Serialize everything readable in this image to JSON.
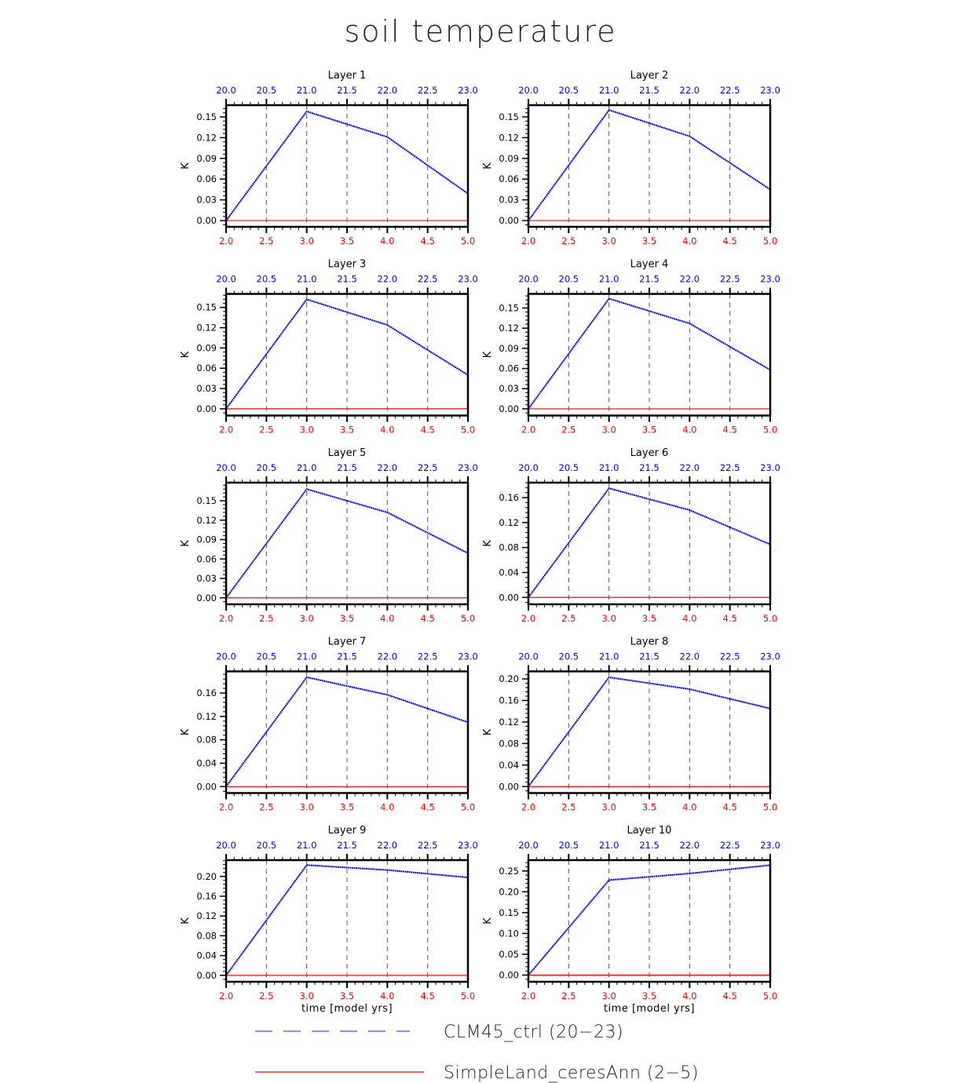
{
  "title": "soil temperature",
  "colors": {
    "clm": "#0000ff",
    "simpleland": "#ff0000",
    "frame": "#000000",
    "grid": "#555555",
    "top_ticks": "#0000ff",
    "bottom_ticks": "#ff0000"
  },
  "legend": {
    "items": [
      {
        "label": "CLM45_ctrl (20−23)",
        "style": "dashed",
        "color": "#6666ff"
      },
      {
        "label": "SimpleLand_ceresAnn (2−5)",
        "style": "solid",
        "color": "#ff3333"
      }
    ]
  },
  "chart_data": {
    "type": "line",
    "title": "soil temperature",
    "layout": {
      "rows": 5,
      "cols": 2,
      "legend_position": "bottom",
      "grid": "vertical dashed"
    },
    "x_bottom": {
      "label": "time [model yrs]",
      "ticks": [
        "2.0",
        "2.5",
        "3.0",
        "3.5",
        "4.0",
        "4.5",
        "5.0"
      ],
      "range": [
        2.0,
        5.0
      ],
      "color": "#ff0000"
    },
    "x_top": {
      "ticks": [
        "20.0",
        "20.5",
        "21.0",
        "21.5",
        "22.0",
        "22.5",
        "23.0"
      ],
      "range": [
        20.0,
        23.0
      ],
      "color": "#0000ff"
    },
    "ylabel": "K",
    "series_names": [
      "CLM45_ctrl (20−23)",
      "SimpleLand_ceresAnn (2−5)"
    ],
    "panels": [
      {
        "title": "Layer 1",
        "yticks": [
          "0.00",
          "0.03",
          "0.06",
          "0.09",
          "0.12",
          "0.15"
        ],
        "ytick_values": [
          0,
          0.03,
          0.06,
          0.09,
          0.12,
          0.15
        ],
        "ylim": [
          -0.009,
          0.167
        ],
        "x": [
          2,
          3,
          4,
          5
        ],
        "clm": [
          0.0,
          0.158,
          0.121,
          0.039
        ],
        "simpleland": [
          0,
          0,
          0,
          0
        ],
        "xlabel": ""
      },
      {
        "title": "Layer 2",
        "yticks": [
          "0.00",
          "0.03",
          "0.06",
          "0.09",
          "0.12",
          "0.15"
        ],
        "ytick_values": [
          0,
          0.03,
          0.06,
          0.09,
          0.12,
          0.15
        ],
        "ylim": [
          -0.009,
          0.167
        ],
        "x": [
          2,
          3,
          4,
          5
        ],
        "clm": [
          0.0,
          0.16,
          0.122,
          0.045
        ],
        "simpleland": [
          0,
          0,
          0,
          0
        ],
        "xlabel": ""
      },
      {
        "title": "Layer 3",
        "yticks": [
          "0.00",
          "0.03",
          "0.06",
          "0.09",
          "0.12",
          "0.15"
        ],
        "ytick_values": [
          0,
          0.03,
          0.06,
          0.09,
          0.12,
          0.15
        ],
        "ylim": [
          -0.01,
          0.17
        ],
        "x": [
          2,
          3,
          4,
          5
        ],
        "clm": [
          0.0,
          0.162,
          0.124,
          0.05
        ],
        "simpleland": [
          0,
          0,
          0,
          0
        ],
        "xlabel": ""
      },
      {
        "title": "Layer 4",
        "yticks": [
          "0.00",
          "0.03",
          "0.06",
          "0.09",
          "0.12",
          "0.15"
        ],
        "ytick_values": [
          0,
          0.03,
          0.06,
          0.09,
          0.12,
          0.15
        ],
        "ylim": [
          -0.01,
          0.171
        ],
        "x": [
          2,
          3,
          4,
          5
        ],
        "clm": [
          0.0,
          0.164,
          0.127,
          0.058
        ],
        "simpleland": [
          0,
          0,
          0,
          0
        ],
        "xlabel": ""
      },
      {
        "title": "Layer 5",
        "yticks": [
          "0.00",
          "0.03",
          "0.06",
          "0.09",
          "0.12",
          "0.15"
        ],
        "ytick_values": [
          0,
          0.03,
          0.06,
          0.09,
          0.12,
          0.15
        ],
        "ylim": [
          -0.01,
          0.178
        ],
        "x": [
          2,
          3,
          4,
          5
        ],
        "clm": [
          0.0,
          0.168,
          0.132,
          0.069
        ],
        "simpleland": [
          0,
          0,
          0,
          0
        ],
        "xlabel": ""
      },
      {
        "title": "Layer 6",
        "yticks": [
          "0.00",
          "0.04",
          "0.08",
          "0.12",
          "0.16"
        ],
        "ytick_values": [
          0,
          0.04,
          0.08,
          0.12,
          0.16
        ],
        "ylim": [
          -0.011,
          0.184
        ],
        "x": [
          2,
          3,
          4,
          5
        ],
        "clm": [
          0.0,
          0.175,
          0.14,
          0.085
        ],
        "simpleland": [
          0,
          0,
          0,
          0
        ],
        "xlabel": ""
      },
      {
        "title": "Layer 7",
        "yticks": [
          "0.00",
          "0.04",
          "0.08",
          "0.12",
          "0.16"
        ],
        "ytick_values": [
          0,
          0.04,
          0.08,
          0.12,
          0.16
        ],
        "ylim": [
          -0.011,
          0.197
        ],
        "x": [
          2,
          3,
          4,
          5
        ],
        "clm": [
          0.0,
          0.187,
          0.157,
          0.11
        ],
        "simpleland": [
          0,
          0,
          0,
          0
        ],
        "xlabel": ""
      },
      {
        "title": "Layer 8",
        "yticks": [
          "0.00",
          "0.04",
          "0.08",
          "0.12",
          "0.16",
          "0.20"
        ],
        "ytick_values": [
          0,
          0.04,
          0.08,
          0.12,
          0.16,
          0.2
        ],
        "ylim": [
          -0.012,
          0.214
        ],
        "x": [
          2,
          3,
          4,
          5
        ],
        "clm": [
          0.0,
          0.203,
          0.181,
          0.145
        ],
        "simpleland": [
          0,
          0,
          0,
          0
        ],
        "xlabel": ""
      },
      {
        "title": "Layer 9",
        "yticks": [
          "0.00",
          "0.04",
          "0.08",
          "0.12",
          "0.16",
          "0.20"
        ],
        "ytick_values": [
          0,
          0.04,
          0.08,
          0.12,
          0.16,
          0.2
        ],
        "ylim": [
          -0.013,
          0.233
        ],
        "x": [
          2,
          3,
          4,
          5
        ],
        "clm": [
          0.0,
          0.223,
          0.213,
          0.198
        ],
        "simpleland": [
          0,
          0,
          0,
          0
        ],
        "xlabel": "time [model yrs]"
      },
      {
        "title": "Layer 10",
        "yticks": [
          "0.00",
          "0.05",
          "0.10",
          "0.15",
          "0.20",
          "0.25"
        ],
        "ytick_values": [
          0,
          0.05,
          0.1,
          0.15,
          0.2,
          0.25
        ],
        "ylim": [
          -0.016,
          0.276
        ],
        "x": [
          2,
          3,
          4,
          5
        ],
        "clm": [
          0.0,
          0.228,
          0.244,
          0.264
        ],
        "simpleland": [
          0,
          0,
          0,
          0
        ],
        "xlabel": "time [model yrs]"
      }
    ]
  }
}
